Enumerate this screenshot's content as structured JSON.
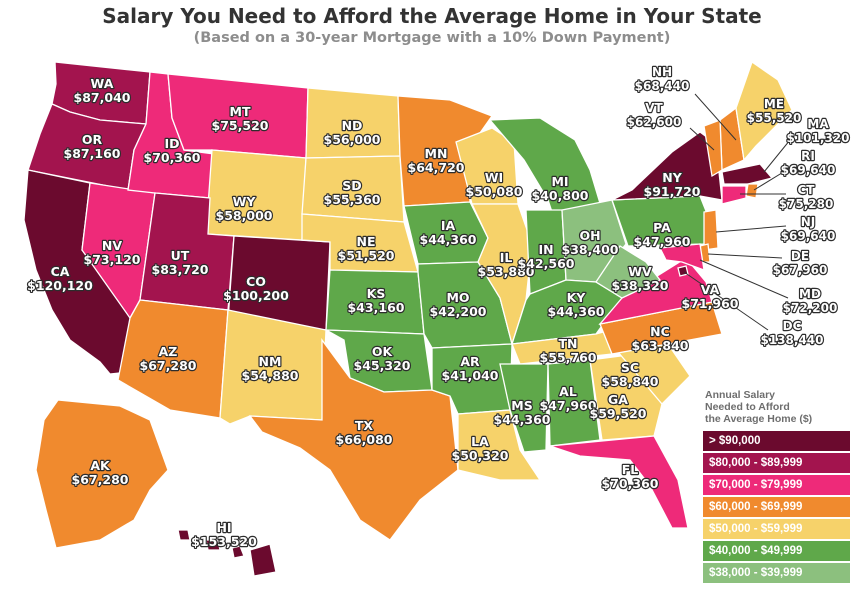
{
  "title": "Salary You Need to Afford the Average Home in Your State",
  "subtitle": "(Based on a 30-year Mortgage with a 10% Down Payment)",
  "legend": {
    "title_lines": [
      "Annual Salary",
      "Needed to Afford",
      "the Average Home ($)"
    ],
    "bins": [
      {
        "label": "> $90,000",
        "color": "#6b0a2e"
      },
      {
        "label": "$80,000 - $89,999",
        "color": "#a3144e"
      },
      {
        "label": "$70,000 - $79,999",
        "color": "#ee2a79"
      },
      {
        "label": "$60,000 - $69,999",
        "color": "#f08a2e"
      },
      {
        "label": "$50,000 - $59,999",
        "color": "#f6d26a"
      },
      {
        "label": "$40,000 - $49,999",
        "color": "#5fa84a"
      },
      {
        "label": "$38,000 - $39,999",
        "color": "#8cc07e"
      }
    ]
  },
  "states": [
    {
      "abbr": "WA",
      "value": "$87,040",
      "bin": 1
    },
    {
      "abbr": "OR",
      "value": "$87,160",
      "bin": 1
    },
    {
      "abbr": "CA",
      "value": "$120,120",
      "bin": 0
    },
    {
      "abbr": "NV",
      "value": "$73,120",
      "bin": 2
    },
    {
      "abbr": "ID",
      "value": "$70,360",
      "bin": 2
    },
    {
      "abbr": "MT",
      "value": "$75,520",
      "bin": 2
    },
    {
      "abbr": "WY",
      "value": "$58,000",
      "bin": 4
    },
    {
      "abbr": "UT",
      "value": "$83,720",
      "bin": 1
    },
    {
      "abbr": "CO",
      "value": "$100,200",
      "bin": 0
    },
    {
      "abbr": "AZ",
      "value": "$67,280",
      "bin": 3
    },
    {
      "abbr": "NM",
      "value": "$54,880",
      "bin": 4
    },
    {
      "abbr": "ND",
      "value": "$56,000",
      "bin": 4
    },
    {
      "abbr": "SD",
      "value": "$55,360",
      "bin": 4
    },
    {
      "abbr": "NE",
      "value": "$51,520",
      "bin": 4
    },
    {
      "abbr": "KS",
      "value": "$43,160",
      "bin": 5
    },
    {
      "abbr": "OK",
      "value": "$45,320",
      "bin": 5
    },
    {
      "abbr": "TX",
      "value": "$66,080",
      "bin": 3
    },
    {
      "abbr": "MN",
      "value": "$64,720",
      "bin": 3
    },
    {
      "abbr": "IA",
      "value": "$44,360",
      "bin": 5
    },
    {
      "abbr": "MO",
      "value": "$42,200",
      "bin": 5
    },
    {
      "abbr": "AR",
      "value": "$41,040",
      "bin": 5
    },
    {
      "abbr": "LA",
      "value": "$50,320",
      "bin": 4
    },
    {
      "abbr": "WI",
      "value": "$50,080",
      "bin": 4
    },
    {
      "abbr": "IL",
      "value": "$53,880",
      "bin": 4
    },
    {
      "abbr": "MI",
      "value": "$40,800",
      "bin": 5
    },
    {
      "abbr": "IN",
      "value": "$42,560",
      "bin": 5
    },
    {
      "abbr": "OH",
      "value": "$38,400",
      "bin": 6
    },
    {
      "abbr": "KY",
      "value": "$44,360",
      "bin": 5
    },
    {
      "abbr": "TN",
      "value": "$55,760",
      "bin": 4
    },
    {
      "abbr": "MS",
      "value": "$44,360",
      "bin": 5
    },
    {
      "abbr": "AL",
      "value": "$47,960",
      "bin": 5
    },
    {
      "abbr": "GA",
      "value": "$59,520",
      "bin": 4
    },
    {
      "abbr": "FL",
      "value": "$70,360",
      "bin": 2
    },
    {
      "abbr": "SC",
      "value": "$58,840",
      "bin": 4
    },
    {
      "abbr": "NC",
      "value": "$63,840",
      "bin": 3
    },
    {
      "abbr": "VA",
      "value": "$71,960",
      "bin": 2
    },
    {
      "abbr": "WV",
      "value": "$38,320",
      "bin": 6
    },
    {
      "abbr": "PA",
      "value": "$47,960",
      "bin": 5
    },
    {
      "abbr": "NY",
      "value": "$91,720",
      "bin": 0
    },
    {
      "abbr": "AK",
      "value": "$67,280",
      "bin": 3
    },
    {
      "abbr": "HI",
      "value": "$153,520",
      "bin": 0
    },
    {
      "abbr": "NH",
      "value": "$68,440",
      "bin": 3
    },
    {
      "abbr": "VT",
      "value": "$62,600",
      "bin": 3
    },
    {
      "abbr": "ME",
      "value": "$55,520",
      "bin": 4
    },
    {
      "abbr": "MA",
      "value": "$101,320",
      "bin": 0
    },
    {
      "abbr": "RI",
      "value": "$69,640",
      "bin": 3
    },
    {
      "abbr": "CT",
      "value": "$75,280",
      "bin": 2
    },
    {
      "abbr": "NJ",
      "value": "$69,640",
      "bin": 3
    },
    {
      "abbr": "DE",
      "value": "$67,960",
      "bin": 3
    },
    {
      "abbr": "MD",
      "value": "$72,200",
      "bin": 2
    },
    {
      "abbr": "DC",
      "value": "$138,440",
      "bin": 0
    }
  ]
}
